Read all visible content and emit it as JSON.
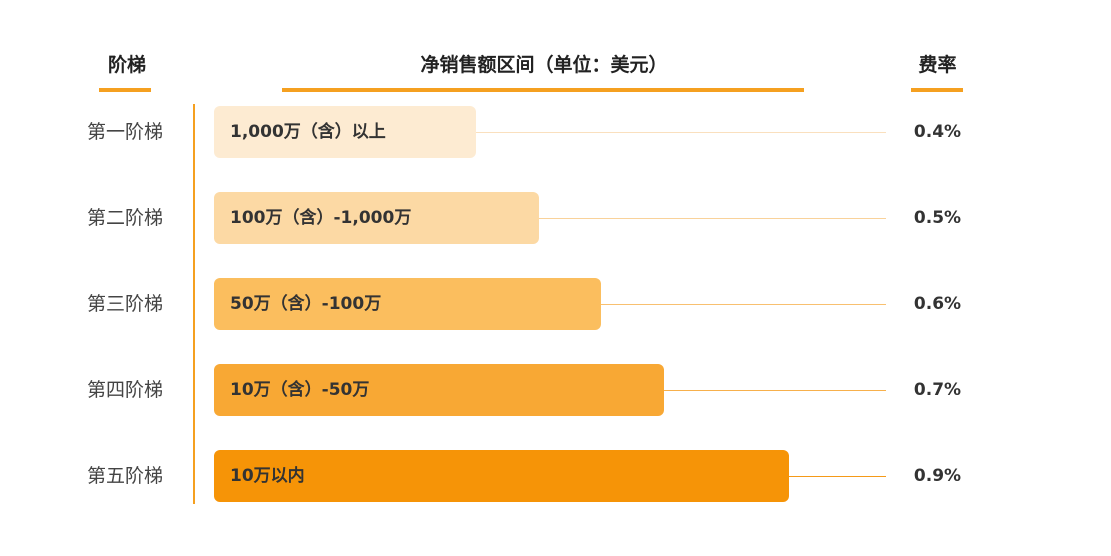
{
  "headers": {
    "tier": "阶梯",
    "range": "净销售额区间（单位：美元）",
    "rate": "费率"
  },
  "colors": {
    "accent": "#F5A020",
    "bars": [
      "#FDEBD2",
      "#FCD9A4",
      "#FBBE5E",
      "#F8A834",
      "#F69407"
    ],
    "leaders": [
      "#FAE0BE",
      "#F9D29A",
      "#F8C070",
      "#F7B04C",
      "#F59A18"
    ]
  },
  "chart_data": {
    "type": "bar",
    "orientation": "horizontal",
    "categories": [
      "第一阶梯",
      "第二阶梯",
      "第三阶梯",
      "第四阶梯",
      "第五阶梯"
    ],
    "bar_labels": [
      "1,000万（含）以上",
      "100万（含）-1,000万",
      "50万（含）-100万",
      "10万（含）-50万",
      "10万以内"
    ],
    "rates": [
      "0.4%",
      "0.5%",
      "0.6%",
      "0.7%",
      "0.9%"
    ],
    "values": [
      0.4,
      0.5,
      0.6,
      0.7,
      0.9
    ]
  }
}
